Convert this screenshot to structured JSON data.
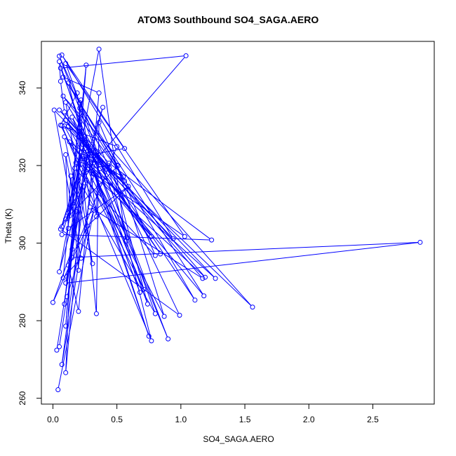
{
  "chart_data": {
    "type": "line",
    "title": "ATOM3 Southbound SO4_SAGA.AERO",
    "xlabel": "SO4_SAGA.AERO",
    "ylabel": "Theta (K)",
    "xlim": [
      -0.09,
      2.98
    ],
    "ylim": [
      258.5,
      352
    ],
    "xticks": [
      0,
      0.5,
      1,
      1.5,
      2,
      2.5
    ],
    "xtick_labels": [
      "0.0",
      "0.5",
      "1.0",
      "1.5",
      "2.0",
      "2.5"
    ],
    "yticks": [
      260,
      280,
      300,
      320,
      340
    ],
    "ytick_labels": [
      "260",
      "280",
      "300",
      "320",
      "340"
    ],
    "grid": false,
    "color": "#0000ff",
    "markers": "open-circle",
    "series": [
      {
        "values": [
          [
            0.04,
            262.2
          ],
          [
            0.32,
            308.5
          ],
          [
            0.11,
            286.2
          ],
          [
            0.05,
            273.3
          ],
          [
            0.03,
            272.4
          ],
          [
            0.27,
            322.8
          ],
          [
            0.75,
            276.0
          ],
          [
            0.05,
            346.8
          ],
          [
            0.06,
            341.7
          ],
          [
            0.09,
            333.8
          ],
          [
            0.21,
            328.8
          ],
          [
            0.34,
            319.9
          ],
          [
            0.58,
            301.4
          ],
          [
            0.12,
            330.1
          ],
          [
            0.33,
            322.5
          ],
          [
            0.84,
            297.2
          ],
          [
            0.2,
            327.4
          ],
          [
            0.41,
            319.6
          ],
          [
            1.11,
            285.3
          ],
          [
            0.12,
            341.3
          ],
          [
            0.25,
            324.4
          ],
          [
            0.68,
            287.3
          ],
          [
            0.15,
            332.5
          ],
          [
            0.37,
            319.2
          ],
          [
            0.77,
            301.7
          ],
          [
            0.09,
            327.4
          ],
          [
            0.31,
            294.7
          ],
          [
            0.1,
            336.3
          ],
          [
            0.42,
            319.1
          ],
          [
            0.94,
            301.1
          ],
          [
            0.07,
            348.5
          ],
          [
            0.56,
            324.4
          ],
          [
            0.24,
            322.4
          ],
          [
            0.55,
            317.1
          ],
          [
            0.08,
            337.9
          ],
          [
            1.56,
            283.5
          ],
          [
            0.23,
            325.5
          ],
          [
            0.71,
            288.1
          ],
          [
            0.06,
            330.4
          ],
          [
            0.19,
            338.7
          ],
          [
            0.29,
            309.3
          ],
          [
            1.17,
            290.9
          ],
          [
            0.1,
            331.6
          ],
          [
            0.47,
            318.1
          ],
          [
            0.74,
            284.3
          ],
          [
            0.06,
            345.1
          ],
          [
            1.04,
            348.3
          ],
          [
            0.27,
            319.0
          ],
          [
            1.03,
            301.7
          ],
          [
            0.1,
            346.3
          ],
          [
            0.8,
            281.8
          ],
          [
            0.2,
            316.3
          ],
          [
            0.1,
            278.6
          ],
          [
            0.26,
            345.9
          ],
          [
            0.18,
            320.7
          ],
          [
            0.57,
            300.5
          ],
          [
            0.36,
            350.0
          ],
          [
            0.12,
            307.7
          ],
          [
            0.14,
            317.3
          ],
          [
            0.2,
            293.0
          ],
          [
            0.21,
            336.2
          ],
          [
            0.5,
            320.1
          ],
          [
            0.87,
            281.1
          ],
          [
            0.09,
            330.2
          ],
          [
            0.44,
            319.5
          ],
          [
            0.99,
            281.4
          ],
          [
            0.06,
            303.6
          ],
          [
            0.22,
            320.3
          ],
          [
            1.19,
            291.2
          ],
          [
            0.05,
            334.3
          ],
          [
            0.44,
            320.6
          ],
          [
            1.24,
            300.8
          ],
          [
            0.07,
            302.2
          ],
          [
            0.39,
            335.0
          ],
          [
            0.05,
            292.6
          ],
          [
            0.25,
            327.5
          ],
          [
            0.9,
            275.3
          ],
          [
            0.05,
            348.2
          ],
          [
            0.43,
            320.0
          ],
          [
            0.77,
            274.8
          ],
          [
            0.07,
            330.3
          ],
          [
            0.5,
            324.9
          ],
          [
            0.15,
            296.3
          ],
          [
            2.87,
            300.2
          ],
          [
            0.1,
            289.7
          ],
          [
            0.27,
            322.1
          ],
          [
            1.18,
            286.4
          ],
          [
            0.08,
            342.8
          ],
          [
            0.36,
            338.7
          ],
          [
            0.2,
            282.4
          ],
          [
            0.12,
            294.3
          ],
          [
            0.25,
            320.2
          ],
          [
            0.1,
            266.6
          ],
          [
            0.17,
            319.3
          ],
          [
            0.8,
            296.8
          ],
          [
            0.36,
            331.1
          ],
          [
            0.34,
            281.8
          ],
          [
            0.24,
            314.5
          ],
          [
            0.07,
            304.2
          ],
          [
            0.23,
            321.8
          ],
          [
            1.27,
            290.9
          ],
          [
            0.01,
            334.3
          ],
          [
            0.22,
            296.1
          ],
          [
            0.08,
            291.0
          ],
          [
            0.21,
            334.8
          ],
          [
            0.56,
            316.0
          ],
          [
            0.13,
            326.1
          ],
          [
            0.32,
            317.8
          ],
          [
            0.07,
            268.7
          ],
          [
            0.26,
            316.2
          ],
          [
            0.15,
            298.4
          ],
          [
            0.0,
            284.7
          ],
          [
            0.27,
            304.4
          ],
          [
            0.59,
            314.6
          ],
          [
            0.12,
            303.8
          ],
          [
            0.1,
            322.8
          ],
          [
            0.18,
            308.2
          ],
          [
            0.09,
            284.3
          ],
          [
            0.22,
            323.6
          ],
          [
            0.13,
            307.0
          ],
          [
            0.22,
            336.9
          ],
          [
            0.34,
            306.8
          ],
          [
            0.35,
            323.6
          ],
          [
            0.1,
            306.2
          ],
          [
            0.51,
            320.0
          ]
        ]
      }
    ]
  }
}
